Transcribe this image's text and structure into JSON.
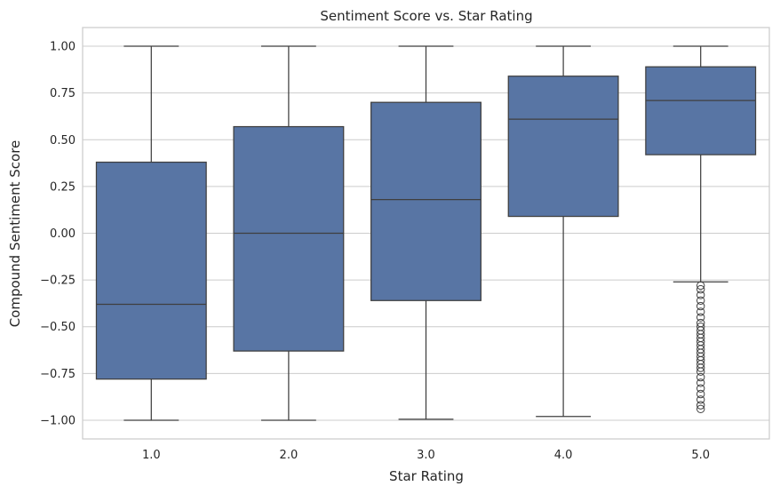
{
  "chart_data": {
    "type": "box",
    "title": "Sentiment Score vs. Star Rating",
    "xlabel": "Star Rating",
    "ylabel": "Compound Sentiment Score",
    "ylim": [
      -1.1,
      1.1
    ],
    "yticks": [
      -1.0,
      -0.75,
      -0.5,
      -0.25,
      0.0,
      0.25,
      0.5,
      0.75,
      1.0
    ],
    "ytick_labels": [
      "−1.00",
      "−0.75",
      "−0.50",
      "−0.25",
      "0.00",
      "0.25",
      "0.50",
      "0.75",
      "1.00"
    ],
    "categories": [
      "1.0",
      "2.0",
      "3.0",
      "4.0",
      "5.0"
    ],
    "grid": true,
    "colors": {
      "box": "#5875a4",
      "line": "#3f3f3f",
      "grid": "#cccccc",
      "frame": "#cccccc"
    },
    "boxes": [
      {
        "category": "1.0",
        "whisker_low": -1.0,
        "q1": -0.78,
        "median": -0.38,
        "q3": 0.38,
        "whisker_high": 1.0,
        "outliers": []
      },
      {
        "category": "2.0",
        "whisker_low": -1.0,
        "q1": -0.63,
        "median": 0.0,
        "q3": 0.57,
        "whisker_high": 1.0,
        "outliers": []
      },
      {
        "category": "3.0",
        "whisker_low": -0.995,
        "q1": -0.36,
        "median": 0.18,
        "q3": 0.7,
        "whisker_high": 1.0,
        "outliers": []
      },
      {
        "category": "4.0",
        "whisker_low": -0.98,
        "q1": 0.09,
        "median": 0.61,
        "q3": 0.84,
        "whisker_high": 1.0,
        "outliers": []
      },
      {
        "category": "5.0",
        "whisker_low": -0.26,
        "q1": 0.42,
        "median": 0.71,
        "q3": 0.89,
        "whisker_high": 1.0,
        "outliers": [
          -0.28,
          -0.3,
          -0.33,
          -0.36,
          -0.39,
          -0.42,
          -0.45,
          -0.48,
          -0.5,
          -0.52,
          -0.54,
          -0.56,
          -0.58,
          -0.6,
          -0.62,
          -0.64,
          -0.66,
          -0.68,
          -0.7,
          -0.72,
          -0.74,
          -0.77,
          -0.8,
          -0.83,
          -0.86,
          -0.89,
          -0.92,
          -0.94
        ]
      }
    ]
  }
}
